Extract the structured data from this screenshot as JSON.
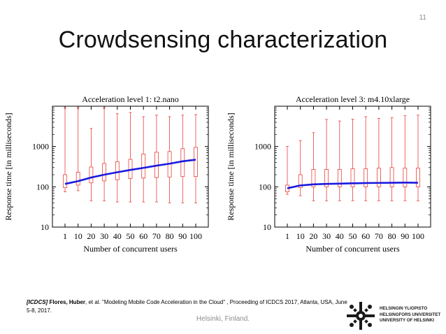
{
  "slide": {
    "number": "11",
    "title": "Crowdsensing characterization"
  },
  "chart_data": [
    {
      "type": "boxplot",
      "title": "Acceleration level 1: t2.nano",
      "xlabel": "Number of concurrent users",
      "ylabel": "Response time [in milliseconds]",
      "x_ticks": [
        "1",
        "10",
        "20",
        "30",
        "40",
        "50",
        "60",
        "70",
        "80",
        "90",
        "100"
      ],
      "y_scale": "log",
      "ylim": [
        10,
        10000
      ],
      "y_ticks": [
        "10",
        "100",
        "1000"
      ],
      "boxes": [
        {
          "x": 1,
          "min": 75,
          "q1": 95,
          "q3": 200,
          "max": 9000
        },
        {
          "x": 10,
          "min": 80,
          "q1": 110,
          "q3": 230,
          "max": 9000
        },
        {
          "x": 20,
          "min": 45,
          "q1": 125,
          "q3": 310,
          "max": 2800
        },
        {
          "x": 30,
          "min": 45,
          "q1": 140,
          "q3": 380,
          "max": 9000
        },
        {
          "x": 40,
          "min": 42,
          "q1": 150,
          "q3": 420,
          "max": 6500
        },
        {
          "x": 50,
          "min": 42,
          "q1": 160,
          "q3": 480,
          "max": 7000
        },
        {
          "x": 60,
          "min": 42,
          "q1": 165,
          "q3": 650,
          "max": 5500
        },
        {
          "x": 70,
          "min": 42,
          "q1": 170,
          "q3": 720,
          "max": 6000
        },
        {
          "x": 80,
          "min": 40,
          "q1": 175,
          "q3": 750,
          "max": 5500
        },
        {
          "x": 90,
          "min": 40,
          "q1": 180,
          "q3": 880,
          "max": 6000
        },
        {
          "x": 100,
          "min": 40,
          "q1": 180,
          "q3": 950,
          "max": 6200
        }
      ],
      "mean_line": {
        "x": [
          1,
          10,
          20,
          30,
          40,
          50,
          60,
          70,
          80,
          90,
          100
        ],
        "y": [
          118,
          138,
          170,
          200,
          230,
          262,
          295,
          335,
          375,
          430,
          470
        ]
      },
      "colors": {
        "box": "#e8413c",
        "mean_line": "#1a1adf"
      }
    },
    {
      "type": "boxplot",
      "title": "Acceleration level 3: m4.10xlarge",
      "xlabel": "Number of concurrent users",
      "ylabel": "Response time [in milliseconds]",
      "x_ticks": [
        "1",
        "10",
        "20",
        "30",
        "40",
        "50",
        "60",
        "70",
        "80",
        "90",
        "100"
      ],
      "y_scale": "log",
      "ylim": [
        10,
        10000
      ],
      "y_ticks": [
        "10",
        "100",
        "1000"
      ],
      "boxes": [
        {
          "x": 1,
          "min": 65,
          "q1": 75,
          "q3": 110,
          "max": 1000
        },
        {
          "x": 10,
          "min": 60,
          "q1": 95,
          "q3": 200,
          "max": 1400
        },
        {
          "x": 20,
          "min": 45,
          "q1": 100,
          "q3": 270,
          "max": 2200
        },
        {
          "x": 30,
          "min": 45,
          "q1": 100,
          "q3": 270,
          "max": 4700
        },
        {
          "x": 40,
          "min": 45,
          "q1": 100,
          "q3": 270,
          "max": 4300
        },
        {
          "x": 50,
          "min": 45,
          "q1": 100,
          "q3": 280,
          "max": 4800
        },
        {
          "x": 60,
          "min": 45,
          "q1": 100,
          "q3": 280,
          "max": 5500
        },
        {
          "x": 70,
          "min": 45,
          "q1": 100,
          "q3": 290,
          "max": 5000
        },
        {
          "x": 80,
          "min": 45,
          "q1": 100,
          "q3": 300,
          "max": 5200
        },
        {
          "x": 90,
          "min": 45,
          "q1": 100,
          "q3": 290,
          "max": 5800
        },
        {
          "x": 100,
          "min": 45,
          "q1": 100,
          "q3": 290,
          "max": 6000
        }
      ],
      "mean_line": {
        "x": [
          1,
          10,
          20,
          30,
          40,
          50,
          60,
          70,
          80,
          90,
          100
        ],
        "y": [
          92,
          108,
          115,
          118,
          120,
          122,
          124,
          125,
          126,
          127,
          126
        ]
      },
      "colors": {
        "box": "#e8413c",
        "mean_line": "#1a1adf"
      }
    }
  ],
  "citation": {
    "ref_tag": "[ICDCS]",
    "authors": "Flores, Huber",
    "text": ", et al. \"Modeling Mobile  Code Acceleration in the Cloud\" , Proceeding of ICDCS 2017, Atlanta, USA, June 5-8, 2017."
  },
  "footer": {
    "location": "Helsinki, Finland."
  },
  "logo": {
    "line1": "HELSINGIN YLIOPISTO",
    "line2": "HELSINGFORS UNIVERSITET",
    "line3": "UNIVERSITY OF HELSINKI",
    "icon": "university-emblem-icon"
  }
}
